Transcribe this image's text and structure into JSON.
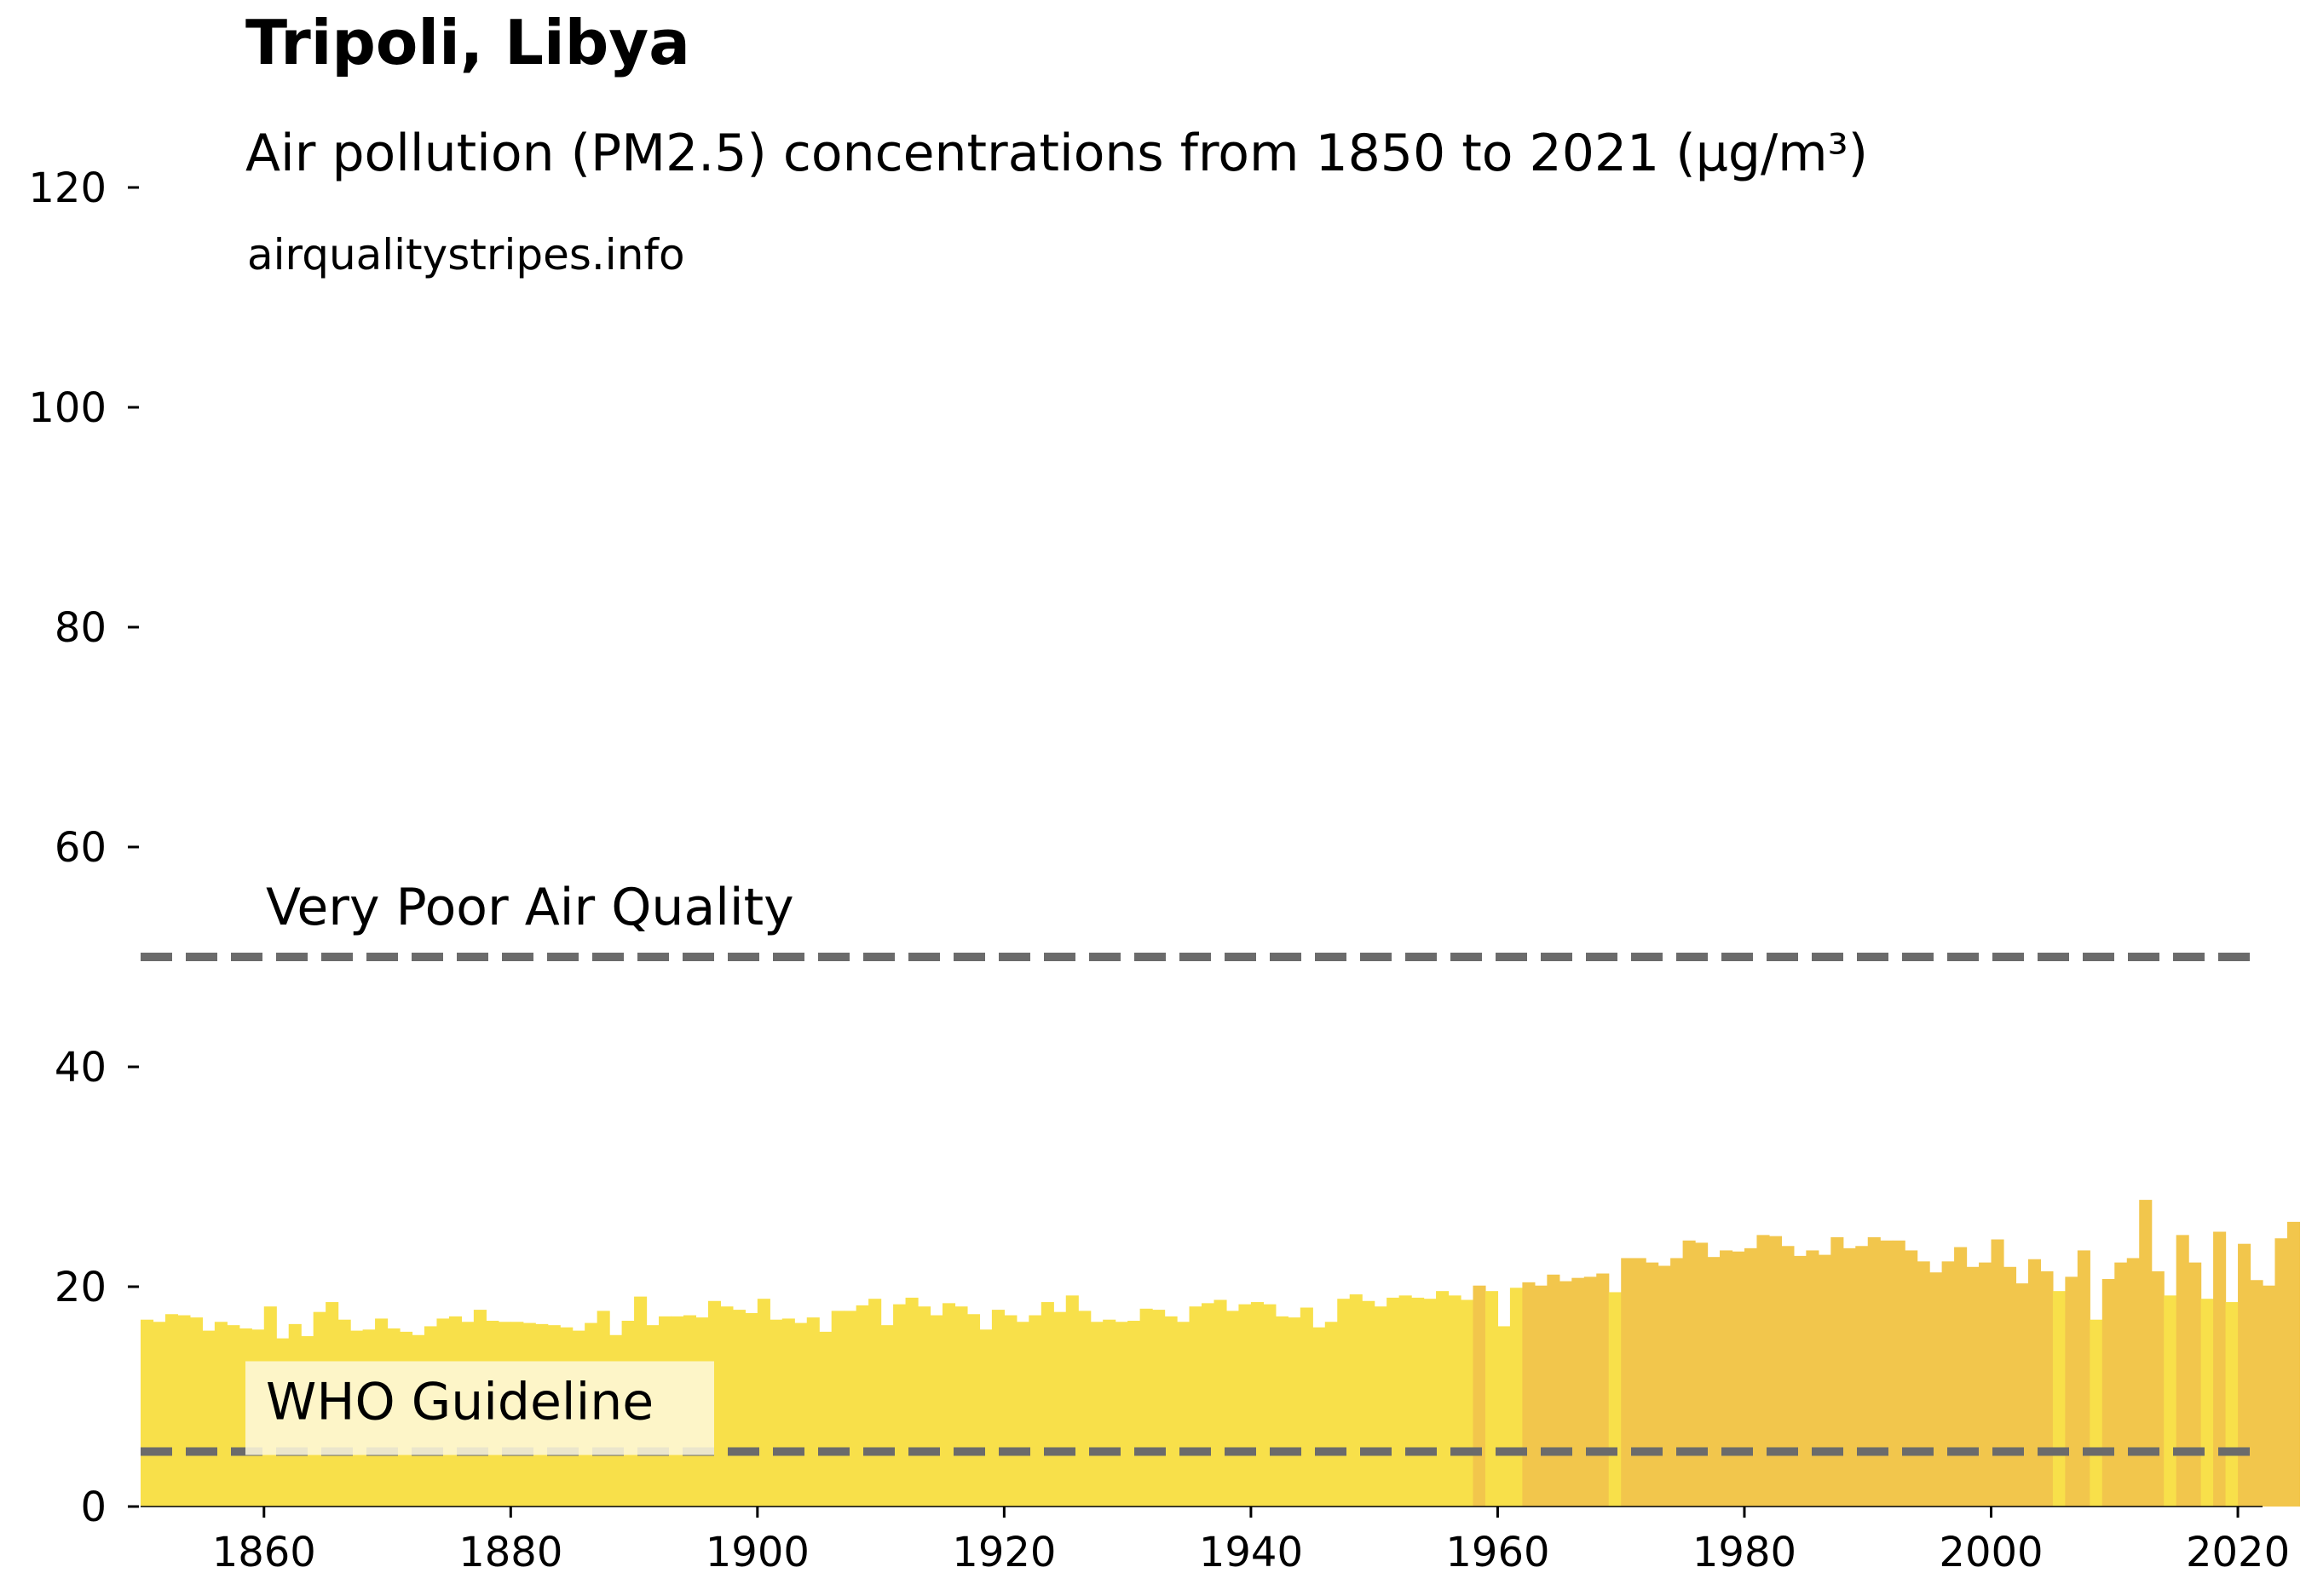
{
  "header": {
    "title": "Tripoli, Libya",
    "subtitle": "Air pollution (PM2.5) concentrations from 1850 to 2021 (µg/m³)",
    "source": "airqualitystripes.info"
  },
  "chart_data": {
    "type": "bar",
    "x_start": 1850,
    "x_end": 2021,
    "xlim": [
      1850,
      2022
    ],
    "ylim": [
      0,
      120
    ],
    "x_ticks": [
      1860,
      1880,
      1900,
      1920,
      1940,
      1960,
      1980,
      2000,
      2020
    ],
    "y_ticks": [
      0,
      20,
      40,
      60,
      80,
      100,
      120
    ],
    "values": [
      17.0,
      16.8,
      17.5,
      17.4,
      17.2,
      16.0,
      16.8,
      16.5,
      16.2,
      16.1,
      18.2,
      15.3,
      16.6,
      15.5,
      17.7,
      18.6,
      17.0,
      16.0,
      16.1,
      17.1,
      16.2,
      15.9,
      15.6,
      16.4,
      17.1,
      17.3,
      16.8,
      17.9,
      16.9,
      16.8,
      16.8,
      16.7,
      16.6,
      16.5,
      16.3,
      16.0,
      16.7,
      17.8,
      15.6,
      16.9,
      19.1,
      16.5,
      17.3,
      17.3,
      17.4,
      17.2,
      18.7,
      18.2,
      17.9,
      17.6,
      18.9,
      17.0,
      17.1,
      16.7,
      17.2,
      15.9,
      17.8,
      17.8,
      18.3,
      18.9,
      16.5,
      18.4,
      19.0,
      18.2,
      17.4,
      18.5,
      18.2,
      17.5,
      16.1,
      17.9,
      17.4,
      16.8,
      17.4,
      18.6,
      17.7,
      19.2,
      17.8,
      16.8,
      17.0,
      16.8,
      16.9,
      18.0,
      17.9,
      17.3,
      16.8,
      18.2,
      18.5,
      18.8,
      17.8,
      18.4,
      18.6,
      18.4,
      17.3,
      17.2,
      18.1,
      16.3,
      16.8,
      18.9,
      19.3,
      18.7,
      18.2,
      19.0,
      19.2,
      19.0,
      18.9,
      19.6,
      19.2,
      18.8,
      20.1,
      19.6,
      16.4,
      19.9,
      20.4,
      20.1,
      21.1,
      20.5,
      20.8,
      20.9,
      21.2,
      19.5,
      22.6,
      22.6,
      22.2,
      21.9,
      22.6,
      24.2,
      24.0,
      22.7,
      23.3,
      23.2,
      23.5,
      24.7,
      24.6,
      23.7,
      22.8,
      23.3,
      22.9,
      24.5,
      23.5,
      23.7,
      24.5,
      24.2,
      24.2,
      23.3,
      22.3,
      21.3,
      22.3,
      23.6,
      21.8,
      22.2,
      24.3,
      21.8,
      20.3,
      22.5,
      21.4,
      19.6,
      20.9,
      23.3,
      17.0,
      20.7,
      22.2,
      22.6,
      27.9,
      21.4,
      19.2,
      24.7,
      22.2,
      18.9,
      25.0,
      18.6,
      23.9,
      20.6,
      20.1,
      24.4,
      25.9
    ],
    "colors": {
      "light_blue": "#aac8e8",
      "yellow": "#f8e04a",
      "dark_yellow": "#f2c64c",
      "guideline": "#6b6b6b",
      "label_box": "#fdf7da"
    },
    "reference_lines": [
      {
        "label": "Very Poor Air Quality",
        "value": 50
      },
      {
        "label": "WHO Guideline",
        "value": 5
      }
    ]
  }
}
